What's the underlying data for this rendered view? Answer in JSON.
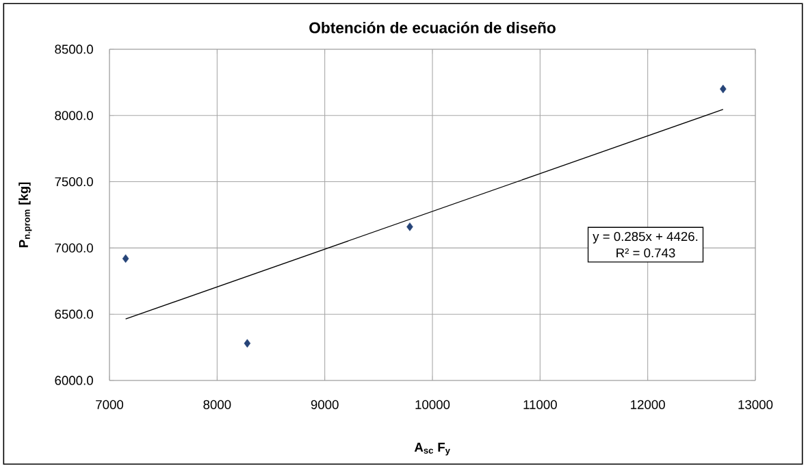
{
  "chart_data": {
    "type": "scatter",
    "title": "Obtención de ecuación de diseño",
    "xlabel": "A$_{sc}$ F$_{y}$",
    "ylabel": "P$_{n.prom}$ [kg]",
    "xlim": [
      7000,
      13000
    ],
    "xticks": [
      7000,
      8000,
      9000,
      10000,
      11000,
      12000,
      13000
    ],
    "ylim": [
      6000,
      8500
    ],
    "yticks": [
      {
        "value": 6000,
        "label": "6000.0"
      },
      {
        "value": 6500,
        "label": "6500.0"
      },
      {
        "value": 7000,
        "label": "7000.0"
      },
      {
        "value": 7500,
        "label": "7500.0"
      },
      {
        "value": 8000,
        "label": "8000.0"
      },
      {
        "value": 8500,
        "label": "8500.0"
      }
    ],
    "grid": true,
    "series": [
      {
        "type": "scatter",
        "color": "#264478",
        "marker": "diamond",
        "x": [
          7150,
          8280,
          9790,
          12700
        ],
        "values": [
          6920,
          6280,
          7160,
          8200
        ]
      },
      {
        "type": "line",
        "color": "#000000",
        "marker": "none",
        "line_style": "solid",
        "x": [
          7150,
          12700
        ],
        "values": [
          6464,
          8046
        ]
      }
    ],
    "annotations": [
      "y = 0.285x + 4426.",
      "R² = 0.743"
    ]
  }
}
